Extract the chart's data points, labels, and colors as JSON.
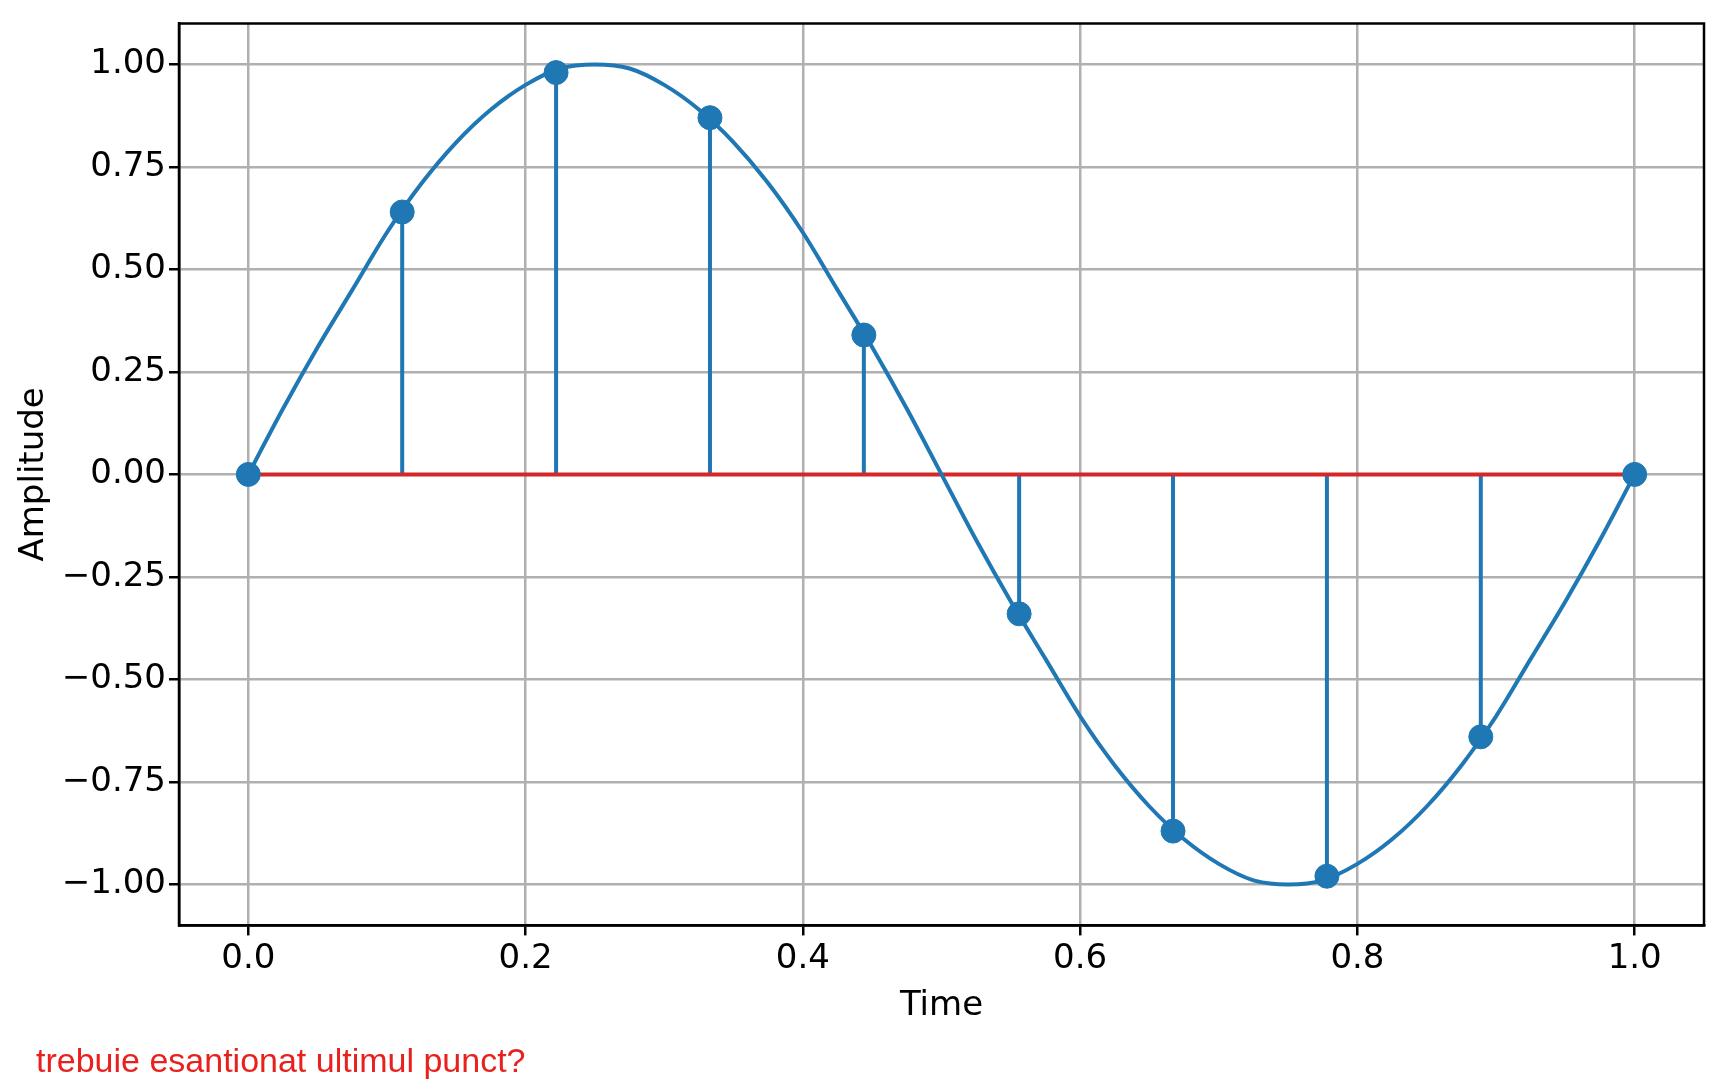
{
  "chart_data": {
    "type": "line",
    "xlabel": "Time",
    "ylabel": "Amplitude",
    "xlim": [
      -0.05,
      1.05
    ],
    "ylim": [
      -1.1,
      1.1
    ],
    "xticks": [
      {
        "value": 0,
        "label": "0.0"
      },
      {
        "value": 0.2,
        "label": "0.2"
      },
      {
        "value": 0.4,
        "label": "0.4"
      },
      {
        "value": 0.6,
        "label": "0.6"
      },
      {
        "value": 0.8,
        "label": "0.8"
      },
      {
        "value": 1,
        "label": "1.0"
      }
    ],
    "yticks": [
      {
        "value": -1,
        "label": "−1.00"
      },
      {
        "value": -0.75,
        "label": "−0.75"
      },
      {
        "value": -0.5,
        "label": "−0.50"
      },
      {
        "value": -0.25,
        "label": "−0.25"
      },
      {
        "value": 0,
        "label": "0.00"
      },
      {
        "value": 0.25,
        "label": "0.25"
      },
      {
        "value": 0.5,
        "label": "0.50"
      },
      {
        "value": 0.75,
        "label": "0.75"
      },
      {
        "value": 1,
        "label": "1.00"
      }
    ],
    "grid": true,
    "legend": false,
    "line_style": "solid",
    "series": [
      {
        "color": "#1f77b4",
        "marker": "none",
        "x": [
          0,
          0.025,
          0.05,
          0.075,
          0.1,
          0.125,
          0.15,
          0.175,
          0.2,
          0.225,
          0.25,
          0.275,
          0.3,
          0.325,
          0.35,
          0.375,
          0.4,
          0.425,
          0.45,
          0.475,
          0.5,
          0.525,
          0.55,
          0.575,
          0.6,
          0.625,
          0.65,
          0.675,
          0.7,
          0.725,
          0.75,
          0.775,
          0.8,
          0.825,
          0.85,
          0.875,
          0.9,
          0.925,
          0.95,
          0.975,
          1
        ],
        "values": [
          0,
          0.16,
          0.31,
          0.45,
          0.59,
          0.71,
          0.81,
          0.89,
          0.95,
          0.99,
          1,
          0.99,
          0.95,
          0.89,
          0.81,
          0.71,
          0.59,
          0.45,
          0.31,
          0.16,
          0,
          -0.16,
          -0.31,
          -0.45,
          -0.59,
          -0.71,
          -0.81,
          -0.89,
          -0.95,
          -0.99,
          -1,
          -0.99,
          -0.95,
          -0.89,
          -0.81,
          -0.71,
          -0.59,
          -0.45,
          -0.31,
          -0.16,
          0
        ]
      },
      {
        "type": "lollipop",
        "color": "#1f77b4",
        "marker": "circle",
        "x": [
          0,
          0.111,
          0.222,
          0.333,
          0.444,
          0.556,
          0.667,
          0.778,
          0.889,
          1
        ],
        "values": [
          0,
          0.64,
          0.98,
          0.87,
          0.34,
          -0.34,
          -0.87,
          -0.98,
          -0.64,
          0
        ]
      }
    ],
    "ref_lines": [
      {
        "axis": "y",
        "value": 0,
        "color": "#d62728"
      }
    ],
    "annotations": [
      "trebuie esantionat ultimul punct?"
    ]
  }
}
